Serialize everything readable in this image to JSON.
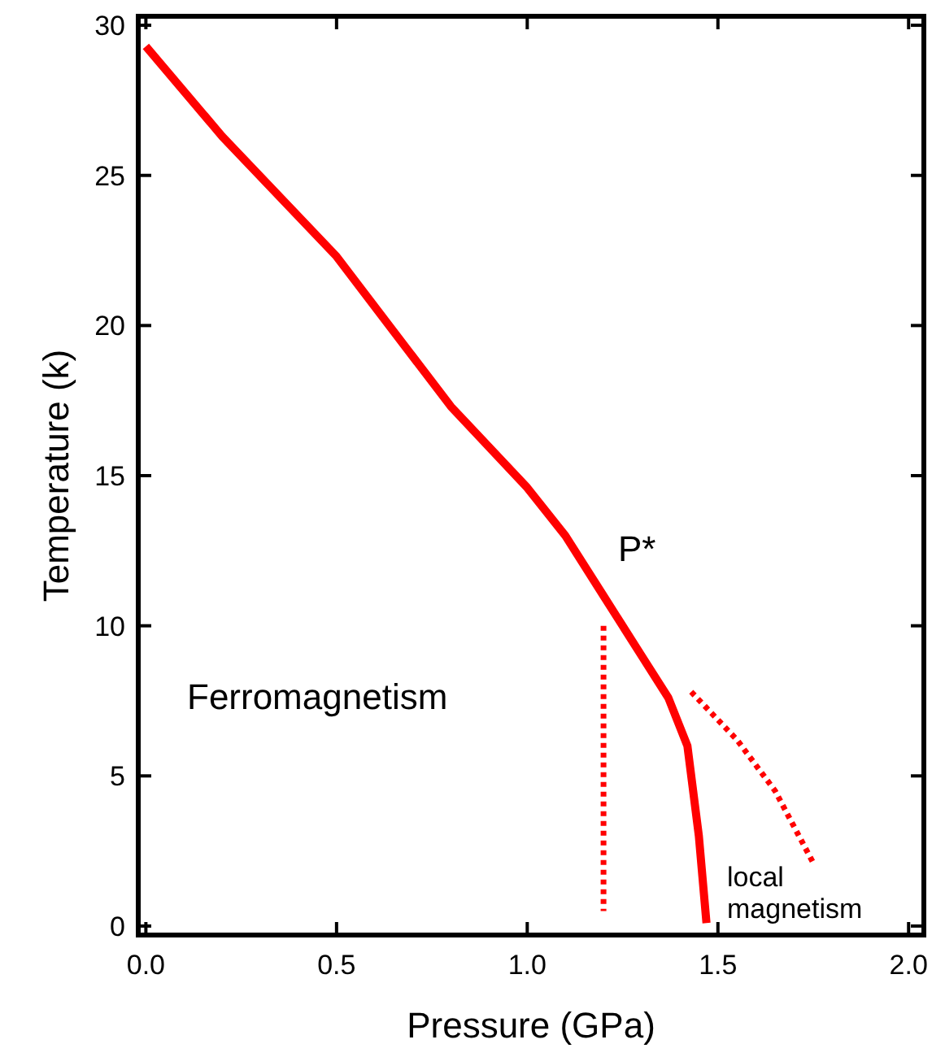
{
  "chart_data": {
    "type": "line",
    "xlabel": "Pressure (GPa)",
    "ylabel": "Temperature (k)",
    "xlim": [
      -0.02,
      2.04
    ],
    "xticks": [
      {
        "value": 0,
        "label": "0.0"
      },
      {
        "value": 0.5,
        "label": "0.5"
      },
      {
        "value": 1,
        "label": "1.0"
      },
      {
        "value": 1.5,
        "label": "1.5"
      },
      {
        "value": 2,
        "label": "2.0"
      }
    ],
    "ylim": [
      -0.3,
      30.3
    ],
    "yticks": [
      0,
      5,
      10,
      15,
      20,
      25,
      30
    ],
    "grid": false,
    "series": [
      {
        "color": "#ff0000",
        "line_style": "solid",
        "x": [
          0,
          0.2,
          0.5,
          0.8,
          1.0,
          1.1,
          1.2,
          1.3,
          1.37,
          1.42,
          1.45,
          1.47
        ],
        "values": [
          29.3,
          26.3,
          22.3,
          17.3,
          14.6,
          13,
          11,
          9,
          7.6,
          6,
          3,
          0.1
        ]
      },
      {
        "color": "#ff0000",
        "line_style": "dotted",
        "x": [
          1.2,
          1.2
        ],
        "values": [
          10,
          0.5
        ]
      },
      {
        "color": "#ff0000",
        "line_style": "dotted",
        "x": [
          1.43,
          1.55,
          1.65,
          1.75
        ],
        "values": [
          7.8,
          6.2,
          4.5,
          2.1
        ]
      }
    ],
    "annotations": [
      "P*",
      "Ferromagnetism",
      "local\nmagnetism"
    ]
  }
}
